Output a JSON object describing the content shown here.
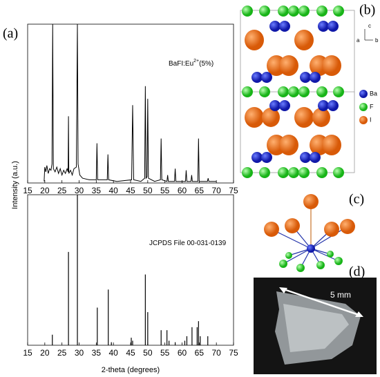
{
  "chart_data": [
    {
      "type": "line",
      "ylabel": "Intensity (a.u.)",
      "annotation": [
        "BaFI:Eu",
        "2+",
        "(5%)"
      ],
      "color": "#000000",
      "x": [
        19.8,
        20,
        20.3,
        20.6,
        21,
        21.4,
        21.8,
        22.1,
        22.3,
        22.5,
        23,
        23.5,
        24,
        24.5,
        25,
        25.5,
        26,
        26.5,
        26.8,
        26.9,
        27.0,
        27.5,
        28,
        28.5,
        29.2,
        29.5,
        29.7,
        30.2,
        31,
        33,
        35.0,
        35.2,
        35.4,
        37,
        38.2,
        38.4,
        38.6,
        41,
        45.3,
        45.6,
        45.9,
        48,
        49.1,
        49.3,
        49.5,
        49.8,
        50.0,
        50.2,
        52,
        53.7,
        53.9,
        54.1,
        55.6,
        55.8,
        56.0,
        57.8,
        58,
        58.2,
        61,
        61.2,
        61.4,
        62.6,
        62.8,
        63,
        64.6,
        64.8,
        65,
        67.4,
        67.6,
        67.8,
        70
      ],
      "values": [
        1,
        10,
        7,
        11,
        6,
        9,
        8,
        12,
        100,
        9,
        7,
        10,
        6,
        9,
        5,
        8,
        6,
        9,
        7,
        42,
        6,
        8,
        5,
        9,
        10,
        100,
        12,
        5,
        3,
        2,
        2,
        25,
        2,
        2,
        2,
        18,
        2,
        1,
        2,
        49,
        2,
        1,
        3,
        61,
        3,
        4,
        53,
        3,
        1,
        2,
        28,
        2,
        1,
        5,
        1,
        1,
        9,
        1,
        1,
        8,
        1,
        1,
        5,
        1,
        1,
        28,
        1,
        1,
        3,
        1,
        1
      ],
      "xlim": [
        15,
        75
      ],
      "xticks": [
        15,
        20,
        25,
        30,
        35,
        40,
        45,
        50,
        55,
        60,
        65,
        70,
        75
      ],
      "ylim": [
        0,
        100
      ]
    },
    {
      "type": "stem",
      "xlabel": "2-theta (degrees)",
      "annotation": [
        "JCPDS File 00-031-0139"
      ],
      "color": "#000000",
      "x": [
        22.2,
        26.9,
        29.5,
        35.3,
        38.5,
        39.4,
        45.2,
        45.6,
        49.3,
        50.0,
        53.9,
        55.6,
        56.2,
        58.0,
        60.8,
        61.4,
        62.9,
        64.4,
        64.8,
        65.3,
        67.5
      ],
      "values": [
        7,
        62,
        100,
        25,
        37,
        2,
        5,
        3,
        47,
        22,
        10,
        10,
        3,
        2,
        3,
        6,
        12,
        12,
        16,
        6,
        6
      ],
      "xlim": [
        15,
        75
      ],
      "xticks": [
        15,
        20,
        25,
        30,
        35,
        40,
        45,
        50,
        55,
        60,
        65,
        70,
        75
      ],
      "ylim": [
        0,
        100
      ]
    }
  ],
  "figure": {
    "panel_labels": [
      "(a)",
      "(b)",
      "(c)",
      "(d)"
    ],
    "structure": {
      "axes": [
        "c",
        "a",
        "b"
      ],
      "legend": [
        "Ba",
        "F",
        "I"
      ]
    },
    "photo": {
      "scale": "5 mm"
    }
  }
}
